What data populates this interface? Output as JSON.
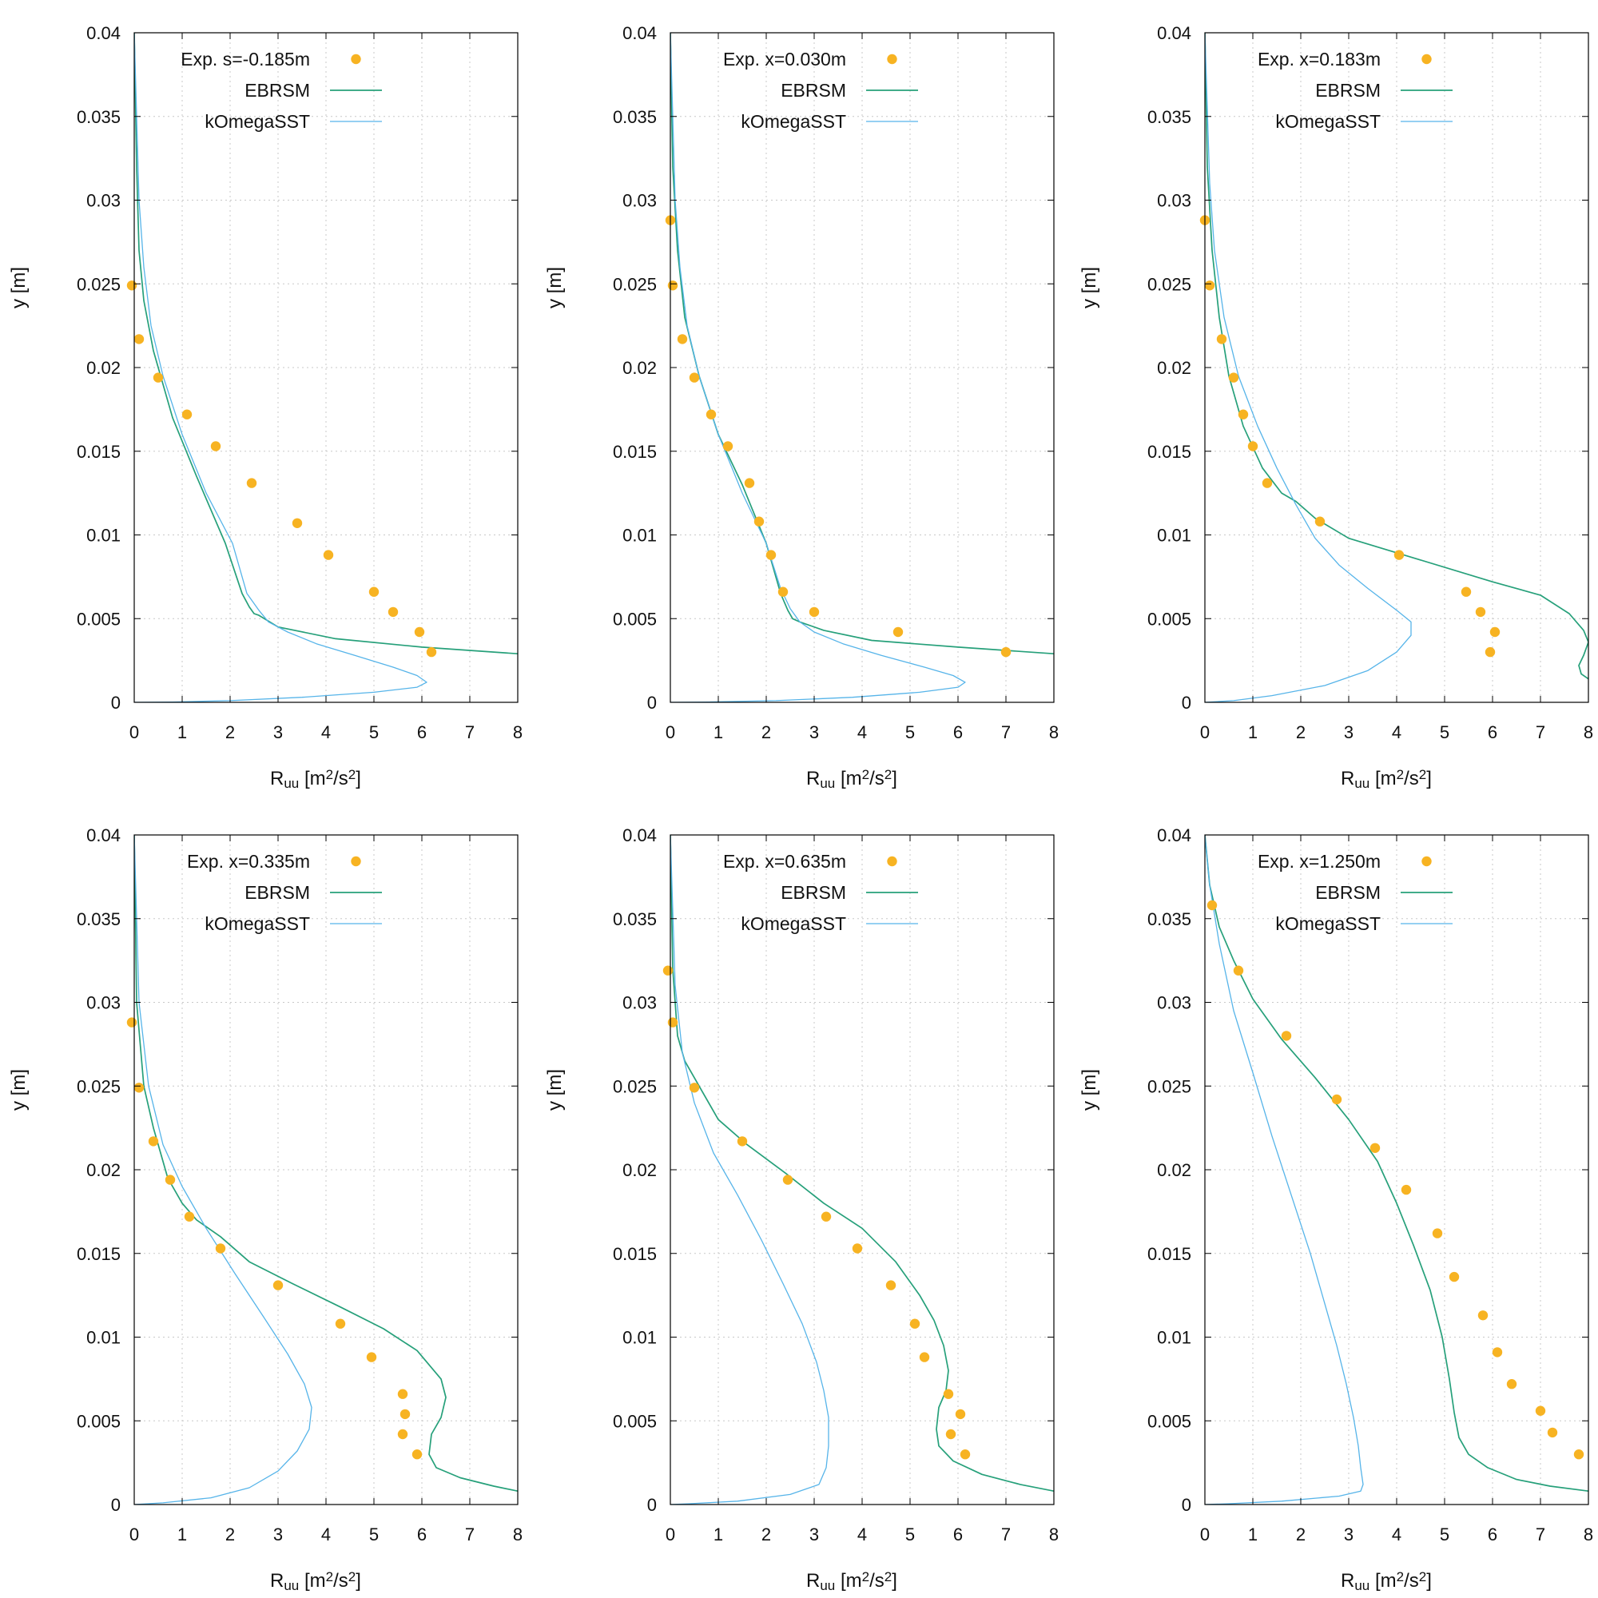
{
  "figure": {
    "ylabel": "y [m]",
    "xlabel_main": "R",
    "xlabel_sub": "uu",
    "xlabel_unit_pre": "[m",
    "xlabel_unit_mid": "/s",
    "xlabel_unit_post": "]",
    "xlabel_exp": "2"
  },
  "legend": {
    "ebrsm": "EBRSM",
    "komega": "kOmegaSST"
  },
  "colors": {
    "exp": "#f7b322",
    "ebrsm": "#26a07a",
    "komega": "#56b4e9",
    "grid": "#c8c8c8",
    "axis": "#000000"
  },
  "chart_data": [
    {
      "type": "scatter",
      "xlabel": "Ruu [m2/s2]",
      "ylabel": "y [m]",
      "xlim": [
        0,
        8
      ],
      "ylim": [
        0,
        0.04
      ],
      "xticks": [
        "0",
        "1",
        "2",
        "3",
        "4",
        "5",
        "6",
        "7",
        "8"
      ],
      "yticks": [
        "0",
        "0.005",
        "0.01",
        "0.015",
        "0.02",
        "0.025",
        "0.03",
        "0.035",
        "0.04"
      ],
      "grid": true,
      "legend": "top-left",
      "series": [
        {
          "name": "Exp. s=-0.185m",
          "style": "points",
          "x": [
            -0.05,
            0.1,
            0.5,
            1.1,
            1.7,
            2.45,
            3.4,
            4.05,
            5.0,
            5.4,
            5.95,
            6.2
          ],
          "y": [
            0.0249,
            0.0217,
            0.0194,
            0.0172,
            0.0153,
            0.0131,
            0.0107,
            0.0088,
            0.0066,
            0.0054,
            0.0042,
            0.003
          ]
        },
        {
          "name": "EBRSM",
          "style": "line",
          "x": [
            0,
            0.05,
            0.1,
            0.2,
            0.4,
            0.8,
            1.3,
            1.9,
            2.25,
            2.4,
            2.5,
            2.6,
            3.0,
            4.2,
            6.0,
            8.0
          ],
          "y": [
            0.04,
            0.032,
            0.027,
            0.024,
            0.021,
            0.017,
            0.0135,
            0.0095,
            0.0065,
            0.0057,
            0.0053,
            0.0052,
            0.0045,
            0.0038,
            0.0033,
            0.0029
          ]
        },
        {
          "name": "kOmegaSST",
          "style": "line",
          "x": [
            0,
            0.1,
            0.2,
            0.35,
            0.6,
            1.0,
            1.5,
            2.05,
            2.35,
            2.6,
            2.8,
            3.2,
            3.8,
            4.6,
            5.4,
            5.9,
            6.1,
            5.9,
            5.0,
            3.5,
            2.0,
            0.8,
            0
          ],
          "y": [
            0.04,
            0.03,
            0.026,
            0.0225,
            0.0195,
            0.016,
            0.0125,
            0.0095,
            0.0065,
            0.0055,
            0.0048,
            0.0042,
            0.0035,
            0.0028,
            0.0021,
            0.0016,
            0.0012,
            0.0009,
            0.0006,
            0.0003,
            0.0001,
            2e-05,
            0
          ]
        }
      ]
    },
    {
      "type": "scatter",
      "xlabel": "Ruu [m2/s2]",
      "ylabel": "y [m]",
      "xlim": [
        0,
        8
      ],
      "ylim": [
        0,
        0.04
      ],
      "xticks": [
        "0",
        "1",
        "2",
        "3",
        "4",
        "5",
        "6",
        "7",
        "8"
      ],
      "yticks": [
        "0",
        "0.005",
        "0.01",
        "0.015",
        "0.02",
        "0.025",
        "0.03",
        "0.035",
        "0.04"
      ],
      "grid": true,
      "legend": "top-left",
      "series": [
        {
          "name": "Exp. x=0.030m",
          "style": "points",
          "x": [
            0.0,
            0.05,
            0.25,
            0.5,
            0.85,
            1.2,
            1.65,
            1.85,
            2.1,
            2.35,
            3.0,
            4.75,
            7.0
          ],
          "y": [
            0.0288,
            0.0249,
            0.0217,
            0.0194,
            0.0172,
            0.0153,
            0.0131,
            0.0108,
            0.0088,
            0.0066,
            0.0054,
            0.0042,
            0.003
          ]
        },
        {
          "name": "EBRSM",
          "style": "line",
          "x": [
            0,
            0.05,
            0.15,
            0.3,
            0.6,
            1.0,
            1.5,
            2.0,
            2.3,
            2.45,
            2.55,
            2.7,
            3.2,
            4.2,
            6.0,
            8.0
          ],
          "y": [
            0.04,
            0.032,
            0.027,
            0.023,
            0.0195,
            0.016,
            0.013,
            0.0095,
            0.0065,
            0.0055,
            0.005,
            0.0048,
            0.0043,
            0.0037,
            0.0033,
            0.0029
          ]
        },
        {
          "name": "kOmegaSST",
          "style": "line",
          "x": [
            0,
            0.1,
            0.2,
            0.35,
            0.6,
            1.0,
            1.5,
            2.0,
            2.3,
            2.5,
            2.7,
            3.0,
            3.6,
            4.4,
            5.3,
            5.9,
            6.15,
            6.0,
            5.2,
            3.8,
            2.2,
            0.8,
            0
          ],
          "y": [
            0.04,
            0.03,
            0.026,
            0.0225,
            0.0195,
            0.016,
            0.0125,
            0.0095,
            0.0068,
            0.0056,
            0.0048,
            0.0042,
            0.0035,
            0.0028,
            0.0021,
            0.0016,
            0.0012,
            0.0009,
            0.0006,
            0.0003,
            0.0001,
            2e-05,
            0
          ]
        }
      ]
    },
    {
      "type": "scatter",
      "xlabel": "Ruu [m2/s2]",
      "ylabel": "y [m]",
      "xlim": [
        0,
        8
      ],
      "ylim": [
        0,
        0.04
      ],
      "xticks": [
        "0",
        "1",
        "2",
        "3",
        "4",
        "5",
        "6",
        "7",
        "8"
      ],
      "yticks": [
        "0",
        "0.005",
        "0.01",
        "0.015",
        "0.02",
        "0.025",
        "0.03",
        "0.035",
        "0.04"
      ],
      "grid": true,
      "legend": "top-left",
      "series": [
        {
          "name": "Exp. x=0.183m",
          "style": "points",
          "x": [
            0.0,
            0.1,
            0.35,
            0.6,
            0.8,
            1.0,
            1.3,
            2.4,
            4.05,
            5.45,
            5.75,
            6.05,
            5.95
          ],
          "y": [
            0.0288,
            0.0249,
            0.0217,
            0.0194,
            0.0172,
            0.0153,
            0.0131,
            0.0108,
            0.0088,
            0.0066,
            0.0054,
            0.0042,
            0.003
          ]
        },
        {
          "name": "EBRSM",
          "style": "line",
          "x": [
            0,
            0.05,
            0.15,
            0.3,
            0.5,
            0.8,
            1.2,
            1.6,
            1.9,
            2.3,
            3.0,
            4.5,
            6.0,
            7.0,
            7.6,
            7.9,
            8.0,
            7.9,
            7.8,
            7.85,
            8.0
          ],
          "y": [
            0.04,
            0.032,
            0.027,
            0.023,
            0.0195,
            0.0165,
            0.014,
            0.0125,
            0.012,
            0.011,
            0.0098,
            0.0085,
            0.0072,
            0.0064,
            0.0053,
            0.0043,
            0.0036,
            0.0028,
            0.0022,
            0.0017,
            0.0014
          ]
        },
        {
          "name": "kOmegaSST",
          "style": "line",
          "x": [
            0,
            0.1,
            0.2,
            0.4,
            0.7,
            1.1,
            1.5,
            1.9,
            2.3,
            2.8,
            3.4,
            4.0,
            4.3,
            4.3,
            4.0,
            3.4,
            2.5,
            1.4,
            0.6,
            0
          ],
          "y": [
            0.04,
            0.031,
            0.027,
            0.023,
            0.0195,
            0.0165,
            0.014,
            0.0118,
            0.0098,
            0.0082,
            0.0068,
            0.0055,
            0.0048,
            0.004,
            0.003,
            0.0019,
            0.001,
            0.0004,
            0.0001,
            0
          ]
        }
      ]
    },
    {
      "type": "scatter",
      "xlabel": "Ruu [m2/s2]",
      "ylabel": "y [m]",
      "xlim": [
        0,
        8
      ],
      "ylim": [
        0,
        0.04
      ],
      "xticks": [
        "0",
        "1",
        "2",
        "3",
        "4",
        "5",
        "6",
        "7",
        "8"
      ],
      "yticks": [
        "0",
        "0.005",
        "0.01",
        "0.015",
        "0.02",
        "0.025",
        "0.03",
        "0.035",
        "0.04"
      ],
      "grid": true,
      "legend": "top-left",
      "series": [
        {
          "name": "Exp. x=0.335m",
          "style": "points",
          "x": [
            -0.05,
            0.1,
            0.4,
            0.75,
            1.15,
            1.8,
            3.0,
            4.3,
            4.95,
            5.6,
            5.65,
            5.6,
            5.9
          ],
          "y": [
            0.0288,
            0.0249,
            0.0217,
            0.0194,
            0.0172,
            0.0153,
            0.0131,
            0.0108,
            0.0088,
            0.0066,
            0.0054,
            0.0042,
            0.003
          ]
        },
        {
          "name": "EBRSM",
          "style": "line",
          "x": [
            0,
            0.05,
            0.2,
            0.4,
            0.7,
            1.0,
            1.3,
            1.8,
            2.4,
            3.3,
            4.3,
            5.2,
            5.9,
            6.4,
            6.5,
            6.4,
            6.2,
            6.15,
            6.3,
            6.8,
            7.5,
            8.0
          ],
          "y": [
            0.04,
            0.03,
            0.025,
            0.0225,
            0.0195,
            0.018,
            0.017,
            0.016,
            0.0145,
            0.0132,
            0.0118,
            0.0105,
            0.0092,
            0.0075,
            0.0064,
            0.0052,
            0.0042,
            0.003,
            0.0022,
            0.0016,
            0.0011,
            0.0008
          ]
        },
        {
          "name": "kOmegaSST",
          "style": "line",
          "x": [
            0,
            0.1,
            0.3,
            0.6,
            1.0,
            1.5,
            2.1,
            2.7,
            3.2,
            3.55,
            3.7,
            3.65,
            3.4,
            3.0,
            2.4,
            1.6,
            0.6,
            0
          ],
          "y": [
            0.04,
            0.03,
            0.025,
            0.0215,
            0.019,
            0.0165,
            0.0138,
            0.0112,
            0.009,
            0.0072,
            0.0058,
            0.0045,
            0.0032,
            0.002,
            0.001,
            0.0004,
            0.0001,
            0
          ]
        }
      ]
    },
    {
      "type": "scatter",
      "xlabel": "Ruu [m2/s2]",
      "ylabel": "y [m]",
      "xlim": [
        0,
        8
      ],
      "ylim": [
        0,
        0.04
      ],
      "xticks": [
        "0",
        "1",
        "2",
        "3",
        "4",
        "5",
        "6",
        "7",
        "8"
      ],
      "yticks": [
        "0",
        "0.005",
        "0.01",
        "0.015",
        "0.02",
        "0.025",
        "0.03",
        "0.035",
        "0.04"
      ],
      "grid": true,
      "legend": "top-left",
      "series": [
        {
          "name": "Exp. x=0.635m",
          "style": "points",
          "x": [
            -0.05,
            0.05,
            0.5,
            1.5,
            2.45,
            3.25,
            3.9,
            4.6,
            5.1,
            5.3,
            5.8,
            6.05,
            5.85,
            6.15
          ],
          "y": [
            0.0319,
            0.0288,
            0.0249,
            0.0217,
            0.0194,
            0.0172,
            0.0153,
            0.0131,
            0.0108,
            0.0088,
            0.0066,
            0.0054,
            0.0042,
            0.003
          ]
        },
        {
          "name": "EBRSM",
          "style": "line",
          "x": [
            0,
            0.05,
            0.15,
            0.3,
            0.6,
            1.0,
            1.6,
            2.4,
            3.2,
            4.0,
            4.7,
            5.2,
            5.5,
            5.7,
            5.8,
            5.75,
            5.6,
            5.55,
            5.6,
            5.9,
            6.5,
            7.3,
            8.0
          ],
          "y": [
            0.04,
            0.032,
            0.028,
            0.0265,
            0.025,
            0.023,
            0.0215,
            0.0198,
            0.018,
            0.0165,
            0.0145,
            0.0125,
            0.011,
            0.0095,
            0.008,
            0.0068,
            0.0058,
            0.0045,
            0.0035,
            0.0026,
            0.0018,
            0.0012,
            0.0008
          ]
        },
        {
          "name": "kOmegaSST",
          "style": "line",
          "x": [
            0,
            0.1,
            0.25,
            0.5,
            0.9,
            1.4,
            1.9,
            2.35,
            2.75,
            3.05,
            3.2,
            3.3,
            3.3,
            3.25,
            3.1,
            2.5,
            1.4,
            0.4,
            0
          ],
          "y": [
            0.04,
            0.031,
            0.027,
            0.024,
            0.021,
            0.0185,
            0.0158,
            0.0132,
            0.0108,
            0.0085,
            0.0068,
            0.0052,
            0.0035,
            0.0022,
            0.0012,
            0.0006,
            0.0002,
            5e-05,
            0
          ]
        }
      ]
    },
    {
      "type": "scatter",
      "xlabel": "Ruu [m2/s2]",
      "ylabel": "y [m]",
      "xlim": [
        0,
        8
      ],
      "ylim": [
        0,
        0.04
      ],
      "xticks": [
        "0",
        "1",
        "2",
        "3",
        "4",
        "5",
        "6",
        "7",
        "8"
      ],
      "yticks": [
        "0",
        "0.005",
        "0.01",
        "0.015",
        "0.02",
        "0.025",
        "0.03",
        "0.035",
        "0.04"
      ],
      "grid": true,
      "legend": "top-left",
      "series": [
        {
          "name": "Exp. x=1.250m",
          "style": "points",
          "x": [
            0.15,
            0.7,
            1.7,
            2.75,
            3.55,
            4.2,
            4.85,
            5.2,
            5.8,
            6.1,
            6.4,
            7.0,
            7.25,
            7.8
          ],
          "y": [
            0.0358,
            0.0319,
            0.028,
            0.0242,
            0.0213,
            0.0188,
            0.0162,
            0.0136,
            0.0113,
            0.0091,
            0.0072,
            0.0056,
            0.0043,
            0.003
          ]
        },
        {
          "name": "EBRSM",
          "style": "line",
          "x": [
            0,
            0.1,
            0.3,
            0.6,
            1.0,
            1.6,
            2.3,
            3.0,
            3.6,
            4.0,
            4.35,
            4.7,
            4.95,
            5.1,
            5.2,
            5.3,
            5.5,
            5.9,
            6.5,
            7.2,
            8.0
          ],
          "y": [
            0.04,
            0.037,
            0.0345,
            0.0325,
            0.0302,
            0.0278,
            0.0255,
            0.023,
            0.0205,
            0.018,
            0.0155,
            0.0128,
            0.01,
            0.0075,
            0.0055,
            0.004,
            0.003,
            0.0022,
            0.0015,
            0.0011,
            0.0008
          ]
        },
        {
          "name": "kOmegaSST",
          "style": "line",
          "x": [
            0,
            0.1,
            0.3,
            0.6,
            1.0,
            1.4,
            1.8,
            2.2,
            2.5,
            2.75,
            2.95,
            3.1,
            3.2,
            3.25,
            3.3,
            3.25,
            2.8,
            1.6,
            0.5,
            0
          ],
          "y": [
            0.04,
            0.037,
            0.0335,
            0.0295,
            0.0258,
            0.022,
            0.0185,
            0.015,
            0.012,
            0.0095,
            0.0072,
            0.0052,
            0.0035,
            0.0022,
            0.0012,
            0.0008,
            0.0005,
            0.0002,
            5e-05,
            0
          ]
        }
      ]
    }
  ]
}
